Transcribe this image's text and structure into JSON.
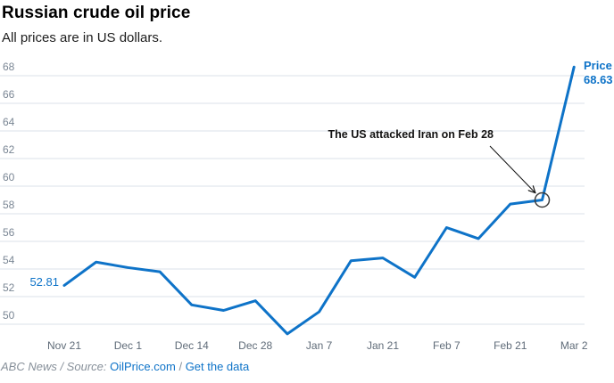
{
  "colors": {
    "accent": "#0e73c8",
    "grid": "#dbe1e8",
    "y_tick_text": "#7a8694",
    "x_tick_text": "#5f6b78",
    "annotation_text": "#111111",
    "circle_stroke": "#3d3d3d"
  },
  "header": {
    "title": "Russian crude oil price",
    "subtitle": "All prices are in US dollars."
  },
  "chart_data": {
    "type": "line",
    "title": "Russian crude oil price",
    "subtitle": "All prices are in US dollars.",
    "unit": "US dollars",
    "ylim": [
      48.8,
      69.4
    ],
    "grid": true,
    "y_ticks": [
      68,
      66,
      64,
      62,
      60,
      58,
      56,
      54,
      52,
      50
    ],
    "x_tick_labels": [
      "Nov 21",
      "Dec 1",
      "Dec 14",
      "Dec 28",
      "Jan 7",
      "Jan 21",
      "Feb 7",
      "Feb 21",
      "Mar 2"
    ],
    "points": [
      {
        "tick": "Nov 21",
        "value": 52.81
      },
      {
        "tick": "",
        "value": 54.5
      },
      {
        "tick": "Dec 1",
        "value": 54.1
      },
      {
        "tick": "",
        "value": 53.8
      },
      {
        "tick": "Dec 14",
        "value": 51.4
      },
      {
        "tick": "",
        "value": 51.0
      },
      {
        "tick": "Dec 28",
        "value": 51.7
      },
      {
        "tick": "",
        "value": 49.3
      },
      {
        "tick": "Jan 7",
        "value": 50.9
      },
      {
        "tick": "",
        "value": 54.6
      },
      {
        "tick": "Jan 21",
        "value": 54.8
      },
      {
        "tick": "",
        "value": 53.4
      },
      {
        "tick": "Feb 7",
        "value": 57.0
      },
      {
        "tick": "",
        "value": 56.2
      },
      {
        "tick": "Feb 21",
        "value": 58.7
      },
      {
        "tick": "",
        "value": 59.0,
        "circled": true
      },
      {
        "tick": "Mar 2",
        "value": 68.63
      }
    ],
    "start_label": "52.81",
    "end_label_line1": "Price",
    "end_label_line2": "68.63",
    "annotation": {
      "text": "The US attacked Iran on Feb 28",
      "points_to": "circled point"
    }
  },
  "footer": {
    "credit": "ABC News / Source:",
    "source_link": "OilPrice.com",
    "separator": "/",
    "data_link": "Get the data"
  }
}
